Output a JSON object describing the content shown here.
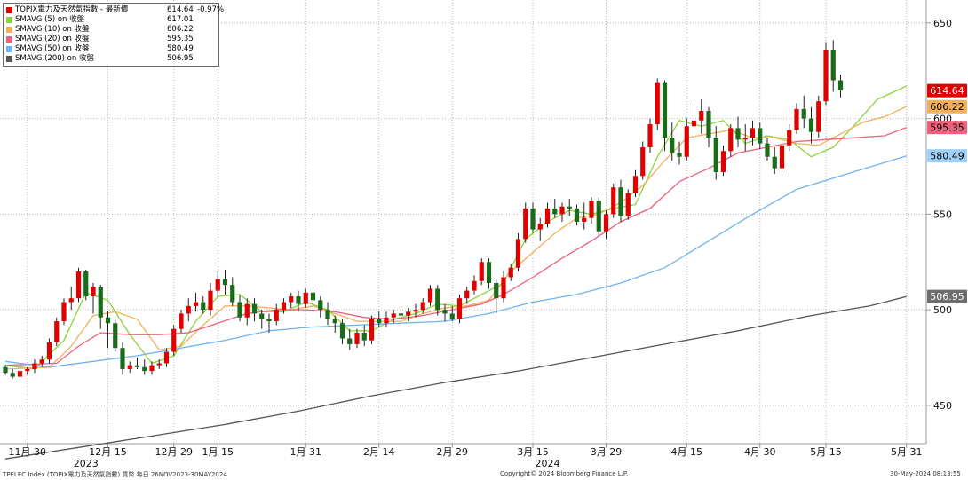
{
  "legend": [
    {
      "label": "TOPIX電力及天然氣指數 - 最新價",
      "value": "614.64",
      "change": "-0.97%",
      "color": "#e00000"
    },
    {
      "label": "SMAVG (5)  on 收盤",
      "value": "617.01",
      "color": "#8cd43c"
    },
    {
      "label": "SMAVG (10)  on 收盤",
      "value": "606.22",
      "color": "#f2b05a"
    },
    {
      "label": "SMAVG (20)  on 收盤",
      "value": "595.35",
      "color": "#f0607a"
    },
    {
      "label": "SMAVG (50)  on 收盤",
      "value": "580.49",
      "color": "#6fb4f0"
    },
    {
      "label": "SMAVG (200)  on 收盤",
      "value": "506.95",
      "color": "#555555"
    }
  ],
  "footer": {
    "left": "TPELEC Index (TOPIX電力及天然氣指數) 貨幣  每日 26NOV2023-30MAY2024",
    "center": "Copyright© 2024 Bloomberg Finance L.P.",
    "right": "30-May-2024 08:13:55"
  },
  "chart_data": {
    "type": "candlestick",
    "ylim": [
      430,
      662
    ],
    "y_ticks": [
      450,
      500,
      550,
      600,
      650
    ],
    "x_ticks": [
      {
        "label": "11月 30",
        "index": 3
      },
      {
        "label": "12月 15",
        "index": 14
      },
      {
        "label": "12月 29",
        "index": 23
      },
      {
        "label": "1月 15",
        "index": 29
      },
      {
        "label": "1月 31",
        "index": 41
      },
      {
        "label": "2月 14",
        "index": 51
      },
      {
        "label": "2月 29",
        "index": 61
      },
      {
        "label": "3月 15",
        "index": 72
      },
      {
        "label": "3月 29",
        "index": 82
      },
      {
        "label": "4月 15",
        "index": 93
      },
      {
        "label": "4月 30",
        "index": 103
      },
      {
        "label": "5月 15",
        "index": 112
      },
      {
        "label": "5月 31",
        "index": 123
      }
    ],
    "year_labels": [
      {
        "label": "2023",
        "index": 11
      },
      {
        "label": "2024",
        "index": 74
      }
    ],
    "up_color": "#e00000",
    "down_color": "#1a6b1a",
    "ohlc": [
      [
        470,
        471,
        466,
        467
      ],
      [
        467,
        469,
        464,
        465
      ],
      [
        465,
        470,
        463,
        468
      ],
      [
        468,
        470,
        466,
        469
      ],
      [
        469,
        474,
        467,
        472
      ],
      [
        472,
        476,
        470,
        474
      ],
      [
        474,
        485,
        472,
        483
      ],
      [
        483,
        496,
        481,
        494
      ],
      [
        494,
        506,
        492,
        504
      ],
      [
        504,
        512,
        500,
        506
      ],
      [
        506,
        522,
        504,
        520
      ],
      [
        520,
        521,
        505,
        507
      ],
      [
        507,
        514,
        498,
        512
      ],
      [
        512,
        513,
        490,
        496
      ],
      [
        496,
        499,
        480,
        493
      ],
      [
        493,
        495,
        478,
        480
      ],
      [
        480,
        483,
        466,
        469
      ],
      [
        469,
        473,
        467,
        471
      ],
      [
        471,
        475,
        469,
        470
      ],
      [
        470,
        474,
        466,
        468
      ],
      [
        468,
        473,
        466,
        471
      ],
      [
        471,
        474,
        469,
        472
      ],
      [
        472,
        480,
        470,
        478
      ],
      [
        478,
        492,
        476,
        490
      ],
      [
        490,
        500,
        488,
        498
      ],
      [
        498,
        506,
        494,
        502
      ],
      [
        502,
        509,
        499,
        504
      ],
      [
        504,
        507,
        498,
        500
      ],
      [
        500,
        514,
        497,
        510
      ],
      [
        510,
        520,
        507,
        516
      ],
      [
        516,
        521,
        508,
        513
      ],
      [
        513,
        517,
        502,
        504
      ],
      [
        504,
        508,
        494,
        496
      ],
      [
        496,
        506,
        492,
        503
      ],
      [
        503,
        506,
        494,
        498
      ],
      [
        498,
        500,
        490,
        495
      ],
      [
        495,
        498,
        488,
        494
      ],
      [
        494,
        503,
        492,
        500
      ],
      [
        500,
        506,
        498,
        504
      ],
      [
        504,
        509,
        501,
        507
      ],
      [
        507,
        510,
        499,
        503
      ],
      [
        503,
        511,
        501,
        509
      ],
      [
        509,
        512,
        502,
        505
      ],
      [
        505,
        507,
        496,
        500
      ],
      [
        500,
        504,
        492,
        495
      ],
      [
        495,
        497,
        488,
        493
      ],
      [
        493,
        495,
        482,
        485
      ],
      [
        485,
        490,
        479,
        482
      ],
      [
        482,
        490,
        480,
        488
      ],
      [
        488,
        492,
        481,
        484
      ],
      [
        484,
        497,
        482,
        495
      ],
      [
        495,
        499,
        491,
        493
      ],
      [
        493,
        499,
        491,
        496
      ],
      [
        496,
        500,
        493,
        498
      ],
      [
        498,
        502,
        496,
        497
      ],
      [
        497,
        501,
        494,
        499
      ],
      [
        499,
        503,
        496,
        500
      ],
      [
        500,
        506,
        498,
        504
      ],
      [
        504,
        513,
        502,
        511
      ],
      [
        511,
        513,
        497,
        500
      ],
      [
        500,
        503,
        494,
        498
      ],
      [
        498,
        502,
        494,
        495
      ],
      [
        495,
        508,
        493,
        506
      ],
      [
        506,
        512,
        503,
        510
      ],
      [
        510,
        518,
        508,
        515
      ],
      [
        515,
        527,
        513,
        525
      ],
      [
        525,
        527,
        511,
        514
      ],
      [
        514,
        516,
        498,
        506
      ],
      [
        506,
        520,
        504,
        517
      ],
      [
        517,
        524,
        515,
        522
      ],
      [
        522,
        540,
        520,
        537
      ],
      [
        537,
        556,
        535,
        553
      ],
      [
        553,
        556,
        540,
        542
      ],
      [
        542,
        548,
        536,
        545
      ],
      [
        545,
        556,
        543,
        553
      ],
      [
        553,
        558,
        548,
        550
      ],
      [
        550,
        556,
        546,
        554
      ],
      [
        554,
        558,
        549,
        553
      ],
      [
        553,
        555,
        544,
        546
      ],
      [
        546,
        556,
        542,
        548
      ],
      [
        548,
        559,
        545,
        557
      ],
      [
        557,
        559,
        538,
        541
      ],
      [
        541,
        552,
        537,
        550
      ],
      [
        550,
        566,
        548,
        564
      ],
      [
        564,
        568,
        546,
        549
      ],
      [
        549,
        563,
        547,
        561
      ],
      [
        561,
        573,
        559,
        570
      ],
      [
        570,
        588,
        568,
        585
      ],
      [
        585,
        600,
        582,
        597
      ],
      [
        597,
        621,
        594,
        619
      ],
      [
        619,
        620,
        583,
        590
      ],
      [
        590,
        598,
        578,
        582
      ],
      [
        582,
        588,
        576,
        580
      ],
      [
        580,
        600,
        578,
        596
      ],
      [
        596,
        608,
        590,
        599
      ],
      [
        599,
        610,
        592,
        604
      ],
      [
        604,
        606,
        585,
        590
      ],
      [
        590,
        596,
        568,
        572
      ],
      [
        572,
        586,
        570,
        583
      ],
      [
        583,
        597,
        580,
        595
      ],
      [
        595,
        601,
        585,
        589
      ],
      [
        589,
        597,
        583,
        590
      ],
      [
        590,
        599,
        586,
        595
      ],
      [
        595,
        598,
        584,
        587
      ],
      [
        587,
        590,
        578,
        580
      ],
      [
        580,
        585,
        571,
        574
      ],
      [
        574,
        589,
        572,
        586
      ],
      [
        586,
        597,
        583,
        594
      ],
      [
        594,
        608,
        592,
        605
      ],
      [
        605,
        612,
        595,
        600
      ],
      [
        600,
        606,
        587,
        593
      ],
      [
        593,
        612,
        590,
        609
      ],
      [
        609,
        640,
        607,
        636
      ],
      [
        636,
        641,
        614,
        620
      ],
      [
        620,
        623,
        611,
        614.64
      ]
    ],
    "sma": [
      {
        "name": "SMAVG (5)",
        "color": "#8cd43c",
        "points": [
          [
            0,
            471
          ],
          [
            4,
            469
          ],
          [
            8,
            484
          ],
          [
            11,
            509
          ],
          [
            14,
            505
          ],
          [
            17,
            487
          ],
          [
            20,
            472
          ],
          [
            23,
            476
          ],
          [
            26,
            494
          ],
          [
            29,
            507
          ],
          [
            32,
            508
          ],
          [
            35,
            499
          ],
          [
            38,
            499
          ],
          [
            41,
            504
          ],
          [
            44,
            500
          ],
          [
            47,
            489
          ],
          [
            50,
            489
          ],
          [
            53,
            495
          ],
          [
            56,
            498
          ],
          [
            59,
            503
          ],
          [
            62,
            502
          ],
          [
            65,
            508
          ],
          [
            68,
            514
          ],
          [
            71,
            537
          ],
          [
            74,
            546
          ],
          [
            77,
            552
          ],
          [
            80,
            550
          ],
          [
            83,
            553
          ],
          [
            86,
            555
          ],
          [
            89,
            580
          ],
          [
            92,
            599
          ],
          [
            95,
            596
          ],
          [
            98,
            599
          ],
          [
            101,
            587
          ],
          [
            104,
            591
          ],
          [
            107,
            589
          ],
          [
            110,
            580
          ],
          [
            113,
            585
          ],
          [
            116,
            597
          ],
          [
            119,
            610
          ],
          [
            123,
            617.01
          ]
        ]
      },
      {
        "name": "SMAVG (10)",
        "color": "#f2b05a",
        "points": [
          [
            0,
            469
          ],
          [
            6,
            470
          ],
          [
            9,
            481
          ],
          [
            12,
            497
          ],
          [
            15,
            499
          ],
          [
            18,
            495
          ],
          [
            21,
            479
          ],
          [
            24,
            481
          ],
          [
            27,
            492
          ],
          [
            30,
            502
          ],
          [
            33,
            502
          ],
          [
            36,
            501
          ],
          [
            39,
            500
          ],
          [
            42,
            502
          ],
          [
            45,
            498
          ],
          [
            48,
            494
          ],
          [
            51,
            494
          ],
          [
            54,
            494
          ],
          [
            57,
            498
          ],
          [
            60,
            501
          ],
          [
            63,
            502
          ],
          [
            66,
            505
          ],
          [
            69,
            520
          ],
          [
            72,
            530
          ],
          [
            75,
            540
          ],
          [
            78,
            548
          ],
          [
            81,
            550
          ],
          [
            84,
            556
          ],
          [
            87,
            565
          ],
          [
            90,
            578
          ],
          [
            93,
            590
          ],
          [
            96,
            592
          ],
          [
            99,
            594
          ],
          [
            102,
            590
          ],
          [
            105,
            590
          ],
          [
            108,
            587
          ],
          [
            111,
            586
          ],
          [
            114,
            592
          ],
          [
            117,
            598
          ],
          [
            120,
            601
          ],
          [
            123,
            606.22
          ]
        ]
      },
      {
        "name": "SMAVG (20)",
        "color": "#f0607a",
        "points": [
          [
            0,
            471
          ],
          [
            7,
            472
          ],
          [
            10,
            481
          ],
          [
            13,
            488
          ],
          [
            17,
            487
          ],
          [
            21,
            487
          ],
          [
            25,
            488
          ],
          [
            29,
            493
          ],
          [
            33,
            498
          ],
          [
            37,
            500
          ],
          [
            41,
            500
          ],
          [
            45,
            499
          ],
          [
            49,
            496
          ],
          [
            53,
            495
          ],
          [
            57,
            497
          ],
          [
            61,
            500
          ],
          [
            65,
            503
          ],
          [
            68,
            508
          ],
          [
            72,
            517
          ],
          [
            76,
            527
          ],
          [
            80,
            536
          ],
          [
            84,
            546
          ],
          [
            88,
            553
          ],
          [
            92,
            567
          ],
          [
            96,
            574
          ],
          [
            100,
            582
          ],
          [
            104,
            585
          ],
          [
            108,
            588
          ],
          [
            112,
            589
          ],
          [
            116,
            590
          ],
          [
            120,
            591
          ],
          [
            123,
            595.35
          ]
        ]
      },
      {
        "name": "SMAVG (50)",
        "color": "#6fb4f0",
        "points": [
          [
            0,
            473
          ],
          [
            6,
            470
          ],
          [
            12,
            473
          ],
          [
            18,
            476
          ],
          [
            24,
            480
          ],
          [
            30,
            484
          ],
          [
            36,
            489
          ],
          [
            42,
            491
          ],
          [
            48,
            492
          ],
          [
            54,
            493
          ],
          [
            60,
            494
          ],
          [
            66,
            498
          ],
          [
            72,
            504
          ],
          [
            78,
            508
          ],
          [
            84,
            514
          ],
          [
            90,
            522
          ],
          [
            96,
            536
          ],
          [
            102,
            550
          ],
          [
            108,
            563
          ],
          [
            114,
            570
          ],
          [
            120,
            577
          ],
          [
            123,
            580.49
          ]
        ]
      },
      {
        "name": "SMAVG (200)",
        "color": "#555555",
        "points": [
          [
            0,
            422
          ],
          [
            10,
            428
          ],
          [
            20,
            434
          ],
          [
            30,
            440
          ],
          [
            40,
            447
          ],
          [
            50,
            455
          ],
          [
            60,
            462
          ],
          [
            70,
            468
          ],
          [
            80,
            475
          ],
          [
            90,
            482
          ],
          [
            100,
            489
          ],
          [
            110,
            497
          ],
          [
            118,
            502
          ],
          [
            123,
            506.95
          ]
        ]
      }
    ],
    "right_tags": [
      {
        "value": "614.64",
        "y": 614.64,
        "bg": "#e00000",
        "fg": "#ffffff"
      },
      {
        "value": "606.22",
        "y": 606.22,
        "bg": "#f2b05a",
        "fg": "#000000"
      },
      {
        "value": "595.35",
        "y": 595.35,
        "bg": "#f0607a",
        "fg": "#000000"
      },
      {
        "value": "580.49",
        "y": 580.49,
        "bg": "#9fd0f7",
        "fg": "#000000"
      },
      {
        "value": "506.95",
        "y": 506.95,
        "bg": "#6d6d6d",
        "fg": "#ffffff"
      }
    ]
  }
}
